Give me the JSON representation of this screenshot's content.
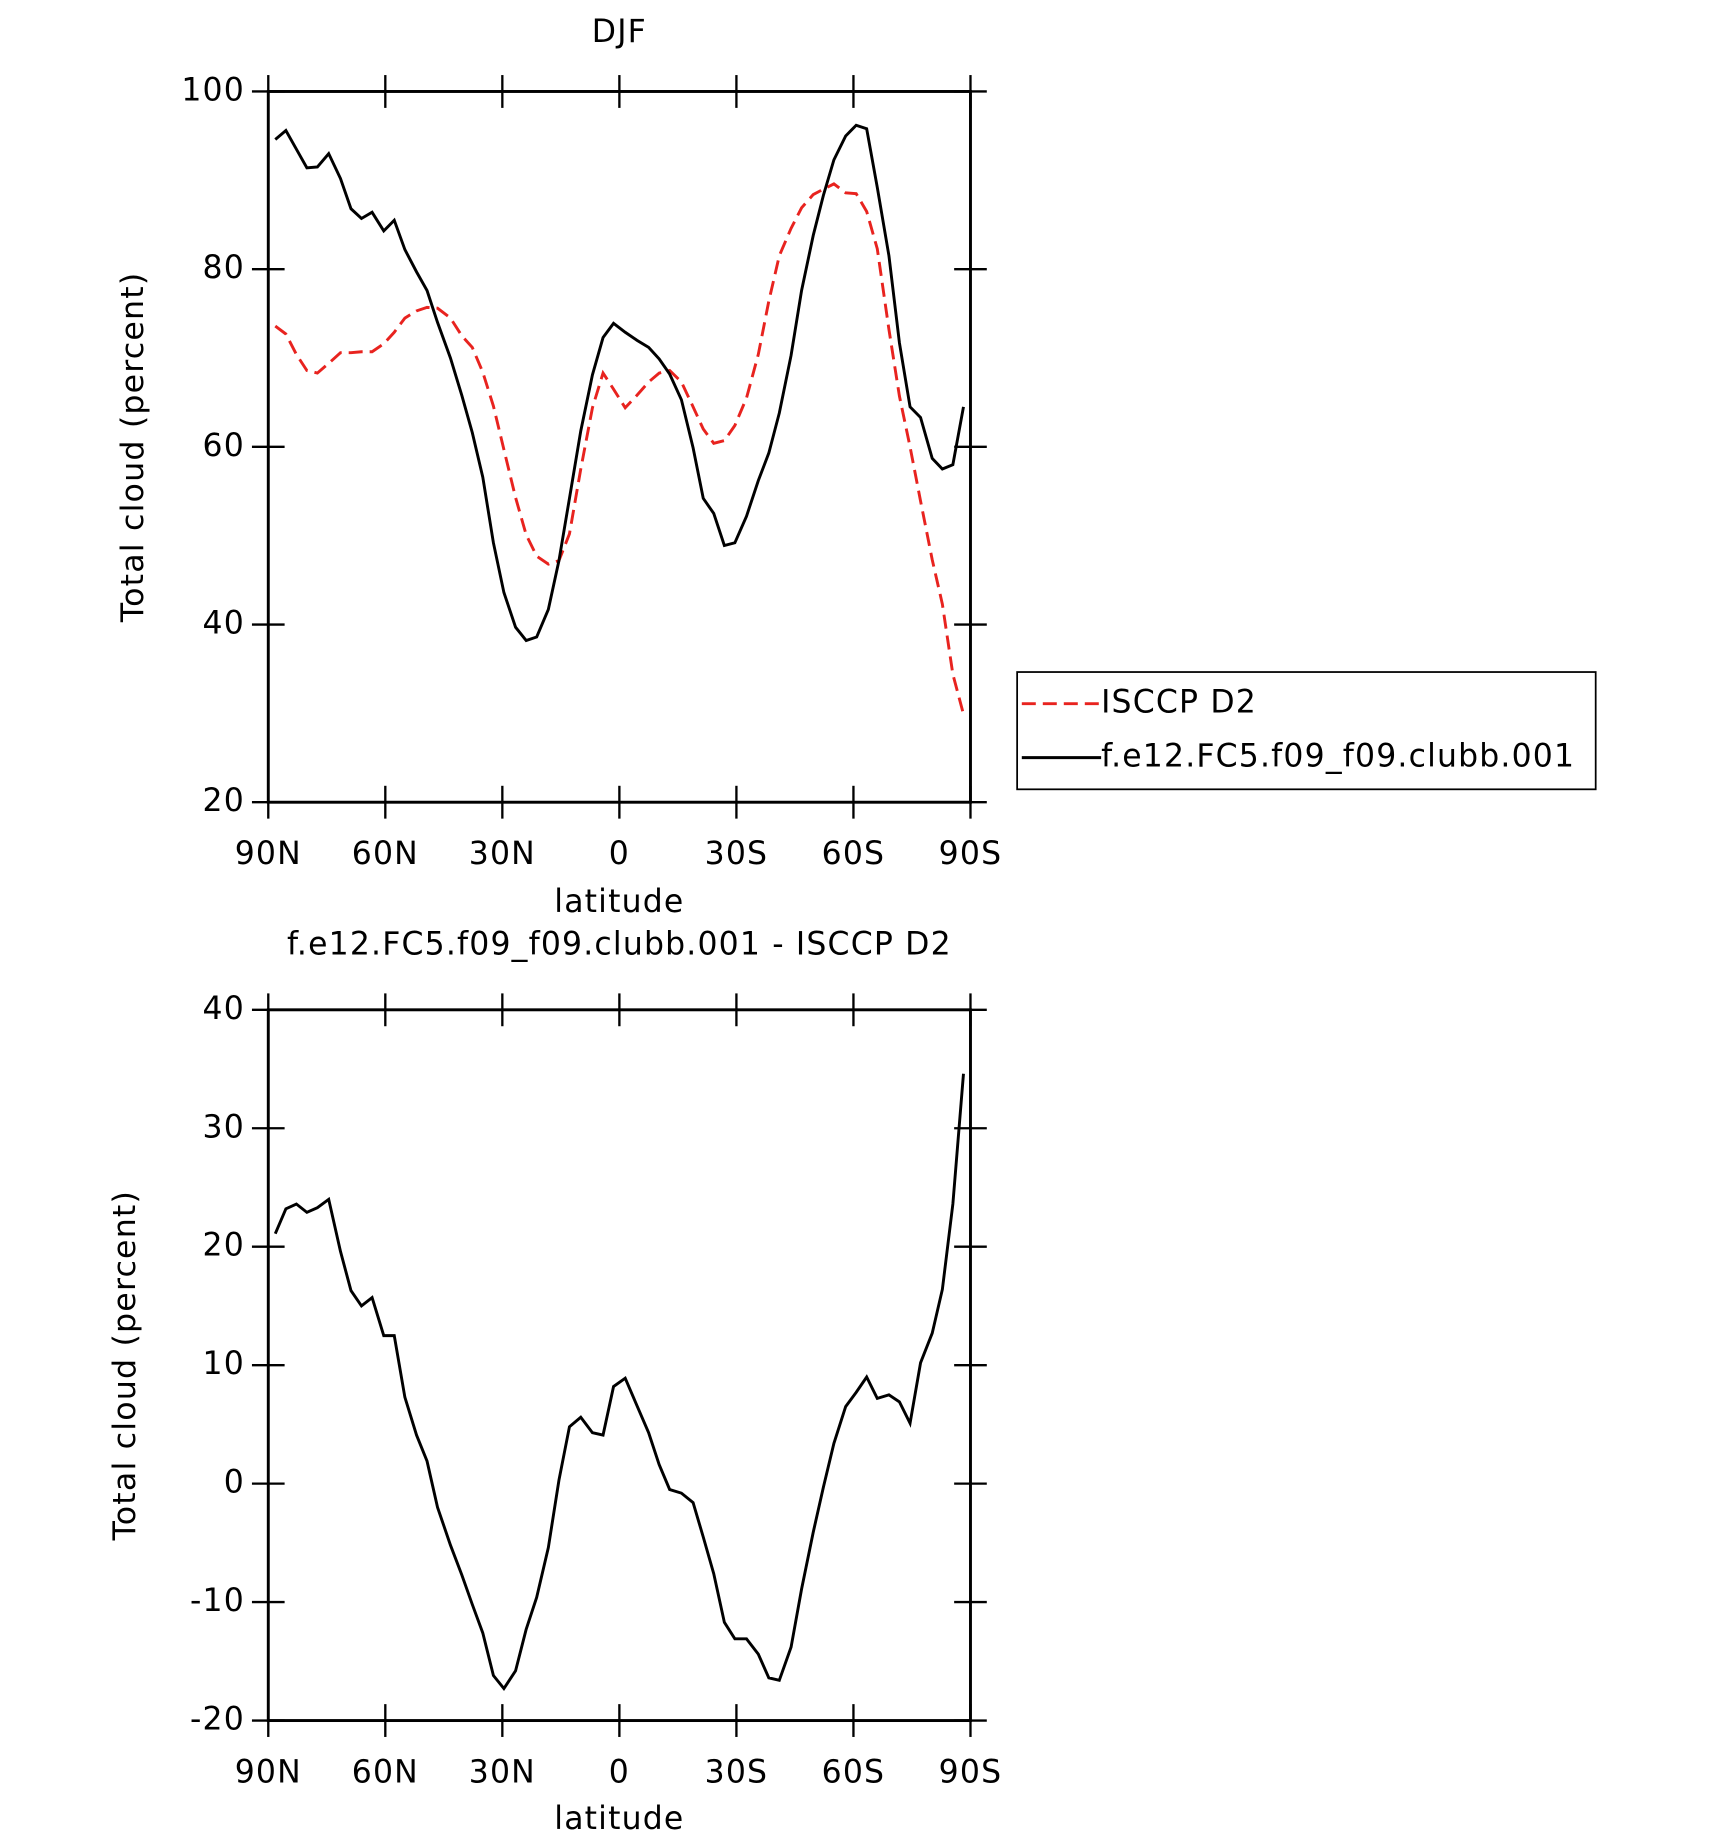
{
  "chart_data": [
    {
      "type": "line",
      "title": "DJF",
      "xlabel": "latitude",
      "ylabel": "Total cloud (percent)",
      "xlim": [
        90,
        -90
      ],
      "ylim": [
        20,
        100
      ],
      "xticks": [
        {
          "value": 90,
          "label": "90N"
        },
        {
          "value": 60,
          "label": "60N"
        },
        {
          "value": 30,
          "label": "30N"
        },
        0,
        {
          "value": -30,
          "label": "30S"
        },
        {
          "value": -60,
          "label": "60S"
        },
        {
          "value": -90,
          "label": "90S"
        }
      ],
      "yticks": [
        20,
        40,
        60,
        80,
        100
      ],
      "legend": "right",
      "x": [
        88.2,
        85.5,
        82.8,
        80.1,
        77.4,
        74.5,
        71.5,
        68.8,
        66.1,
        63.4,
        60.4,
        57.7,
        55,
        52,
        49.3,
        46.6,
        43.3,
        40.4,
        37.7,
        35,
        32.3,
        29.6,
        26.6,
        23.9,
        21.2,
        18.2,
        15.5,
        12.8,
        9.9,
        6.9,
        4.2,
        1.5,
        -1.5,
        -4.5,
        -7.5,
        -10.2,
        -12.9,
        -15.9,
        -18.9,
        -21.5,
        -24.2,
        -26.9,
        -29.6,
        -32.6,
        -35.6,
        -38.3,
        -41,
        -44,
        -46.7,
        -49.7,
        -52.3,
        -55,
        -58,
        -60.7,
        -63.4,
        -66.1,
        -69.1,
        -71.8,
        -74.5,
        -77.2,
        -80.2,
        -82.8,
        -85.5,
        -88.2
      ],
      "series": [
        {
          "name": "ISCCP D2",
          "color": "#e8231f",
          "style": "dashed",
          "values": [
            73.6,
            72.7,
            70.4,
            68.6,
            68.3,
            69.4,
            70.6,
            70.6,
            70.7,
            70.7,
            71.6,
            72.9,
            74.5,
            75.3,
            75.7,
            75.6,
            74.5,
            72.5,
            71.2,
            68.4,
            64.6,
            59.7,
            54.3,
            50.1,
            47.7,
            46.8,
            47.2,
            50.2,
            57.5,
            64.4,
            68.3,
            66.5,
            64.4,
            65.8,
            67.3,
            68.3,
            68.6,
            67.3,
            64.5,
            62,
            60.4,
            60.7,
            62.4,
            65.5,
            70.4,
            76.4,
            81.5,
            84.6,
            86.9,
            88.4,
            89,
            89.6,
            88.6,
            88.5,
            86.5,
            82.3,
            73.2,
            65.7,
            60,
            53.9,
            47.3,
            42.3,
            34.4,
            29.9
          ]
        },
        {
          "name": "f.e12.FC5.f09_f09.clubb.001",
          "color": "#000000",
          "style": "solid",
          "values": [
            94.6,
            95.6,
            93.5,
            91.4,
            91.5,
            93,
            90.2,
            86.8,
            85.7,
            86.4,
            84.3,
            85.5,
            82.2,
            79.7,
            77.6,
            74,
            70,
            65.8,
            61.6,
            56.6,
            49.2,
            43.6,
            39.7,
            38.2,
            38.6,
            41.7,
            47.2,
            54.2,
            61.8,
            68.1,
            72.3,
            73.9,
            72.9,
            72,
            71.2,
            69.9,
            68.2,
            65.3,
            59.9,
            54.2,
            52.5,
            48.9,
            49.2,
            52.2,
            56.2,
            59.3,
            63.8,
            70.3,
            77.6,
            83.8,
            88.3,
            92.3,
            95,
            96.2,
            95.8,
            89.2,
            81.5,
            71.7,
            64.5,
            63.3,
            58.7,
            57.5,
            58,
            64.5
          ]
        }
      ]
    },
    {
      "type": "line",
      "title": "f.e12.FC5.f09_f09.clubb.001 - ISCCP D2",
      "xlabel": "latitude",
      "ylabel": "Total cloud (percent)",
      "xlim": [
        90,
        -90
      ],
      "ylim": [
        -20,
        40
      ],
      "xticks": [
        {
          "value": 90,
          "label": "90N"
        },
        {
          "value": 60,
          "label": "60N"
        },
        {
          "value": 30,
          "label": "30N"
        },
        0,
        {
          "value": -30,
          "label": "30S"
        },
        {
          "value": -60,
          "label": "60S"
        },
        {
          "value": -90,
          "label": "90S"
        }
      ],
      "yticks": [
        -20,
        -10,
        0,
        10,
        20,
        30,
        40
      ],
      "x": [
        88.2,
        85.5,
        82.8,
        80.1,
        77.4,
        74.5,
        71.5,
        68.8,
        66.1,
        63.4,
        60.4,
        57.7,
        55,
        52,
        49.3,
        46.6,
        43.3,
        40.4,
        37.7,
        35,
        32.3,
        29.6,
        26.6,
        23.9,
        21.2,
        18.2,
        15.5,
        12.8,
        9.9,
        6.9,
        4.2,
        1.5,
        -1.5,
        -4.5,
        -7.5,
        -10.2,
        -12.9,
        -15.9,
        -18.9,
        -21.5,
        -24.2,
        -26.9,
        -29.6,
        -32.6,
        -35.6,
        -38.3,
        -41,
        -44,
        -46.7,
        -49.7,
        -52.3,
        -55,
        -58,
        -60.7,
        -63.4,
        -66.1,
        -69.1,
        -71.8,
        -74.5,
        -77.2,
        -80.2,
        -82.8,
        -85.5,
        -88.2
      ],
      "color": "#000000",
      "values": [
        21.1,
        23.2,
        23.6,
        22.9,
        23.3,
        24.0,
        19.6,
        16.3,
        15.0,
        15.7,
        12.5,
        12.5,
        7.3,
        4.1,
        1.9,
        -2.0,
        -5.2,
        -7.7,
        -10.2,
        -12.6,
        -16.2,
        -17.3,
        -15.8,
        -12.3,
        -9.6,
        -5.4,
        0.3,
        4.8,
        5.6,
        4.3,
        4.1,
        8.2,
        8.9,
        6.6,
        4.3,
        1.6,
        -0.5,
        -0.8,
        -1.6,
        -4.5,
        -7.6,
        -11.7,
        -13.1,
        -13.1,
        -14.4,
        -16.4,
        -16.6,
        -13.8,
        -8.9,
        -4.1,
        -0.3,
        3.4,
        6.5,
        7.7,
        9.0,
        7.2,
        7.5,
        6.9,
        5.1,
        10.2,
        12.7,
        16.4,
        23.6,
        34.6
      ]
    }
  ]
}
